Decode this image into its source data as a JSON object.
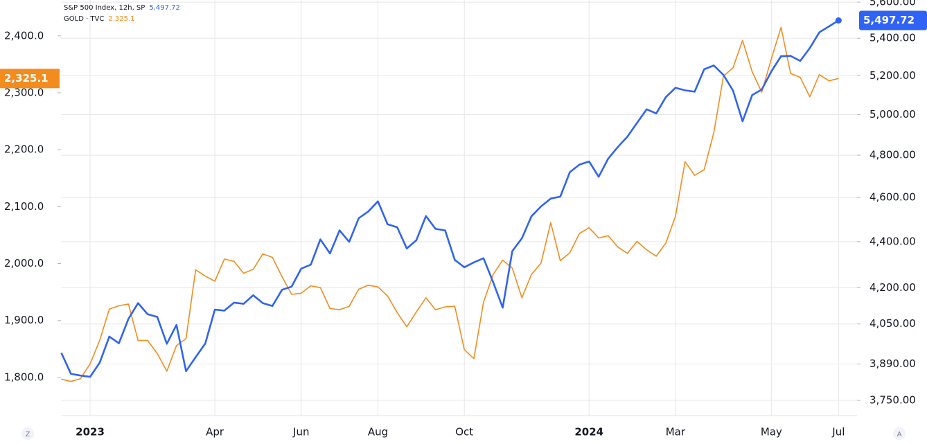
{
  "chart_data": {
    "type": "line",
    "categories": [
      null,
      null,
      null,
      "2023",
      null,
      null,
      null,
      null,
      null,
      null,
      null,
      null,
      null,
      null,
      null,
      null,
      "Apr",
      null,
      null,
      null,
      null,
      null,
      null,
      null,
      null,
      "Jun",
      null,
      null,
      null,
      null,
      null,
      null,
      null,
      "Aug",
      null,
      null,
      null,
      null,
      null,
      null,
      null,
      null,
      "Oct",
      null,
      null,
      null,
      null,
      null,
      null,
      null,
      null,
      null,
      null,
      null,
      null,
      "2024",
      null,
      null,
      null,
      null,
      null,
      null,
      null,
      null,
      "Mar",
      null,
      null,
      null,
      null,
      null,
      null,
      null,
      null,
      null,
      "May",
      null,
      null,
      null,
      null,
      null,
      null,
      "Jul"
    ],
    "series": [
      {
        "name": "S&P 500 Index, 12h, SP",
        "color": "#2f63f5",
        "axis": "y2",
        "values": [
          3934,
          3852,
          3845,
          3840,
          3895,
          3999,
          3972,
          4071,
          4136,
          4090,
          4079,
          3970,
          4046,
          3862,
          3917,
          3971,
          4109,
          4105,
          4138,
          4133,
          4169,
          4136,
          4124,
          4192,
          4205,
          4282,
          4299,
          4410,
          4348,
          4450,
          4399,
          4505,
          4536,
          4582,
          4478,
          4464,
          4370,
          4406,
          4515,
          4457,
          4450,
          4320,
          4288,
          4309,
          4327,
          4224,
          4117,
          4358,
          4415,
          4514,
          4559,
          4595,
          4604,
          4719,
          4755,
          4770,
          4697,
          4784,
          4840,
          4891,
          4959,
          5027,
          5006,
          5089,
          5137,
          5124,
          5117,
          5234,
          5254,
          5204,
          5123,
          4967,
          5100,
          5128,
          5223,
          5303,
          5305,
          5278,
          5347,
          5432,
          5465,
          5497.72
        ],
        "value_labels": [
          null,
          null,
          null,
          null,
          null,
          null,
          null,
          null,
          null,
          null,
          null,
          null,
          null,
          null,
          null,
          null,
          null,
          null,
          null,
          null,
          null,
          null,
          null,
          null,
          null,
          null,
          null,
          null,
          null,
          null,
          null,
          null,
          null,
          null,
          null,
          null,
          null,
          null,
          null,
          null,
          null,
          null,
          null,
          null,
          null,
          null,
          null,
          null,
          null,
          null,
          null,
          null,
          null,
          null,
          null,
          null,
          null,
          null,
          null,
          null,
          null,
          null,
          null,
          null,
          null,
          null,
          null,
          null,
          null,
          null,
          null,
          null,
          null,
          null,
          null,
          null,
          null,
          null,
          null,
          null,
          null,
          "5,497.72"
        ]
      },
      {
        "name": "GOLD · TVC",
        "color": "#f28c1e",
        "values": [
          1797,
          1793,
          1798,
          1824,
          1865,
          1920,
          1926,
          1929,
          1865,
          1865,
          1842,
          1811,
          1856,
          1868,
          1989,
          1978,
          1969,
          2008,
          2004,
          1983,
          1990,
          2017,
          2011,
          1977,
          1946,
          1948,
          1961,
          1958,
          1921,
          1919,
          1925,
          1955,
          1962,
          1959,
          1943,
          1914,
          1889,
          1915,
          1940,
          1919,
          1924,
          1925,
          1849,
          1833,
          1932,
          1981,
          2006,
          1992,
          1940,
          1981,
          2001,
          2072,
          2005,
          2019,
          2053,
          2063,
          2045,
          2049,
          2029,
          2018,
          2039,
          2024,
          2013,
          2036,
          2083,
          2179,
          2155,
          2165,
          2230,
          2329,
          2344,
          2392,
          2337,
          2301,
          2360,
          2415,
          2334,
          2327,
          2293,
          2332,
          2321,
          2325.1
        ],
        "value_labels": [
          null,
          null,
          null,
          null,
          null,
          null,
          null,
          null,
          null,
          null,
          null,
          null,
          null,
          null,
          null,
          null,
          null,
          null,
          null,
          null,
          null,
          null,
          null,
          null,
          null,
          null,
          null,
          null,
          null,
          null,
          null,
          null,
          null,
          null,
          null,
          null,
          null,
          null,
          null,
          null,
          null,
          null,
          null,
          null,
          null,
          null,
          null,
          null,
          null,
          null,
          null,
          null,
          null,
          null,
          null,
          null,
          null,
          null,
          null,
          null,
          null,
          null,
          null,
          null,
          null,
          null,
          null,
          null,
          null,
          null,
          null,
          null,
          null,
          null,
          null,
          null,
          null,
          null,
          null,
          null,
          null,
          "2,325.1"
        ]
      }
    ],
    "ylim": [
      1733,
      2463
    ],
    "yticks": [
      {
        "value": 1800,
        "label": "1,800.0"
      },
      {
        "value": 1900,
        "label": "1,900.0"
      },
      {
        "value": 2000,
        "label": "2,000.0"
      },
      {
        "value": 2100,
        "label": "2,100.0"
      },
      {
        "value": 2200,
        "label": "2,200.0"
      },
      {
        "value": 2300,
        "label": "2,300.0"
      },
      {
        "value": 2400,
        "label": "2,400.0"
      }
    ],
    "y2lim": [
      3693,
      5612
    ],
    "y2_log": true,
    "y2ticks": [
      {
        "value": 3750,
        "label": "3,750.00"
      },
      {
        "value": 3890,
        "label": "3,890.00"
      },
      {
        "value": 4050,
        "label": "4,050.00"
      },
      {
        "value": 4200,
        "label": "4,200.00"
      },
      {
        "value": 4400,
        "label": "4,400.00"
      },
      {
        "value": 4600,
        "label": "4,600.00"
      },
      {
        "value": 4800,
        "label": "4,800.00"
      },
      {
        "value": 5000,
        "label": "5,000.00"
      },
      {
        "value": 5200,
        "label": "5,200.00"
      },
      {
        "value": 5400,
        "label": "5,400.00"
      },
      {
        "value": 5600,
        "label": "5,600.00"
      }
    ],
    "grid": true,
    "controls": [
      "Z",
      "A"
    ]
  }
}
